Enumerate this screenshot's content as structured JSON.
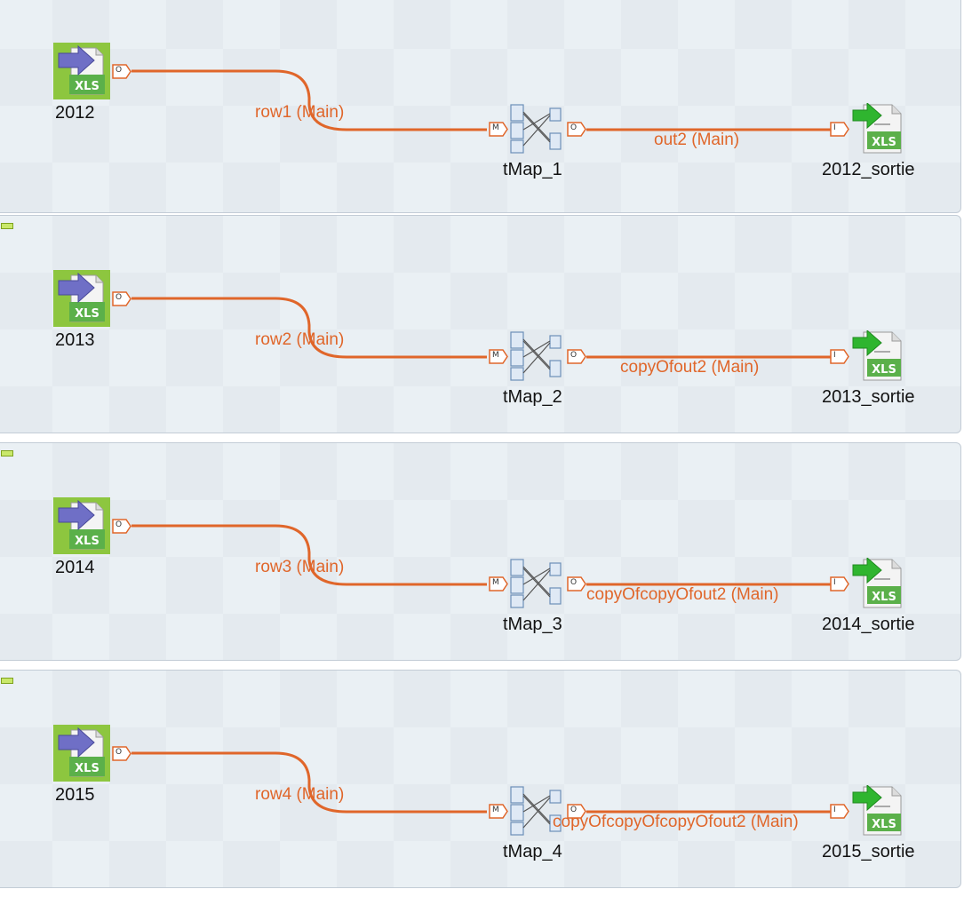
{
  "colors": {
    "link": "#e0662a",
    "subjob_bg": "#eaf0f4",
    "input_icon_bg": "#8dc63f"
  },
  "subjobs": [
    {
      "input_label": "2012",
      "row_label": "row1 (Main)",
      "tmap_label": "tMap_1",
      "out_label": "out2 (Main)",
      "output_label": "2012_sortie"
    },
    {
      "input_label": "2013",
      "row_label": "row2 (Main)",
      "tmap_label": "tMap_2",
      "out_label": "copyOfout2 (Main)",
      "output_label": "2013_sortie"
    },
    {
      "input_label": "2014",
      "row_label": "row3 (Main)",
      "tmap_label": "tMap_3",
      "out_label": "copyOfcopyOfout2 (Main)",
      "output_label": "2014_sortie"
    },
    {
      "input_label": "2015",
      "row_label": "row4 (Main)",
      "tmap_label": "tMap_4",
      "out_label": "copyOfcopyOfcopyOfout2 (Main)",
      "output_label": "2015_sortie"
    }
  ],
  "ports": {
    "out": "O",
    "main": "M",
    "input": "I"
  },
  "icons": {
    "input": "xls-input-icon",
    "tmap": "tmap-icon",
    "output": "xls-output-icon"
  },
  "xls_text": "XLS"
}
